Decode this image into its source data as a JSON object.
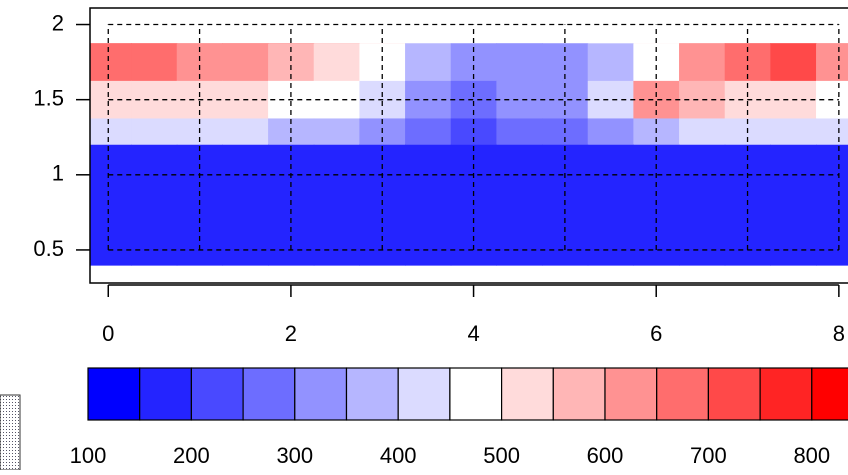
{
  "chart_data": {
    "type": "contour",
    "x": [
      0,
      0.5,
      1,
      1.5,
      2,
      2.5,
      3,
      3.5,
      4,
      4.5,
      5,
      5.5,
      6,
      6.5,
      7,
      7.5,
      8
    ],
    "y": [
      2.0,
      1.75,
      1.5,
      1.25,
      1.0,
      0.75,
      0.5,
      0.3
    ],
    "z": [
      [
        750,
        780,
        720,
        760,
        800,
        650,
        550,
        420,
        350,
        330,
        380,
        450,
        520,
        650,
        750,
        830,
        720
      ],
      [
        650,
        650,
        620,
        620,
        580,
        520,
        470,
        380,
        320,
        300,
        330,
        380,
        480,
        600,
        650,
        700,
        620
      ],
      [
        520,
        530,
        500,
        500,
        480,
        450,
        400,
        330,
        250,
        300,
        330,
        420,
        600,
        550,
        520,
        500,
        480
      ],
      [
        420,
        420,
        420,
        400,
        380,
        350,
        320,
        280,
        220,
        260,
        280,
        320,
        380,
        420,
        420,
        430,
        420
      ],
      [
        320,
        320,
        330,
        320,
        300,
        280,
        270,
        250,
        230,
        240,
        260,
        270,
        300,
        330,
        330,
        340,
        350
      ],
      [
        270,
        260,
        270,
        270,
        260,
        250,
        230,
        250,
        280,
        260,
        240,
        230,
        260,
        300,
        300,
        300,
        300
      ],
      [
        230,
        220,
        200,
        220,
        210,
        220,
        200,
        220,
        230,
        210,
        200,
        200,
        210,
        250,
        230,
        230,
        240
      ],
      [
        150,
        150,
        150,
        150,
        150,
        150,
        150,
        150,
        150,
        150,
        150,
        150,
        150,
        150,
        150,
        150,
        150
      ]
    ],
    "levels": [
      100,
      150,
      200,
      250,
      300,
      350,
      400,
      450,
      500,
      550,
      600,
      650,
      700,
      750,
      800,
      850
    ],
    "colors": [
      "#0000ff",
      "#2424ff",
      "#4949ff",
      "#6d6dff",
      "#9292ff",
      "#b6b6ff",
      "#dbdbff",
      "#ffffff",
      "#ffdbdb",
      "#ffb6b6",
      "#ff9292",
      "#ff6d6d",
      "#ff4949",
      "#ff2424",
      "#ff0000"
    ],
    "xlim": [
      -0.2,
      8.1
    ],
    "ylim": [
      0.28,
      2.11
    ],
    "xticks": [
      0,
      2,
      4,
      6,
      8
    ],
    "yticks": [
      {
        "value": 0.5,
        "label": "0.5"
      },
      1,
      {
        "value": 1.5,
        "label": "1.5"
      },
      2
    ],
    "dashed_grid": {
      "x": [
        0,
        1,
        2,
        3,
        4,
        5,
        6,
        7,
        8
      ],
      "y": [
        0.5,
        1,
        1.5,
        2
      ]
    },
    "colorbar_ticks": [
      100,
      200,
      300,
      400,
      500,
      600,
      700,
      800
    ]
  }
}
